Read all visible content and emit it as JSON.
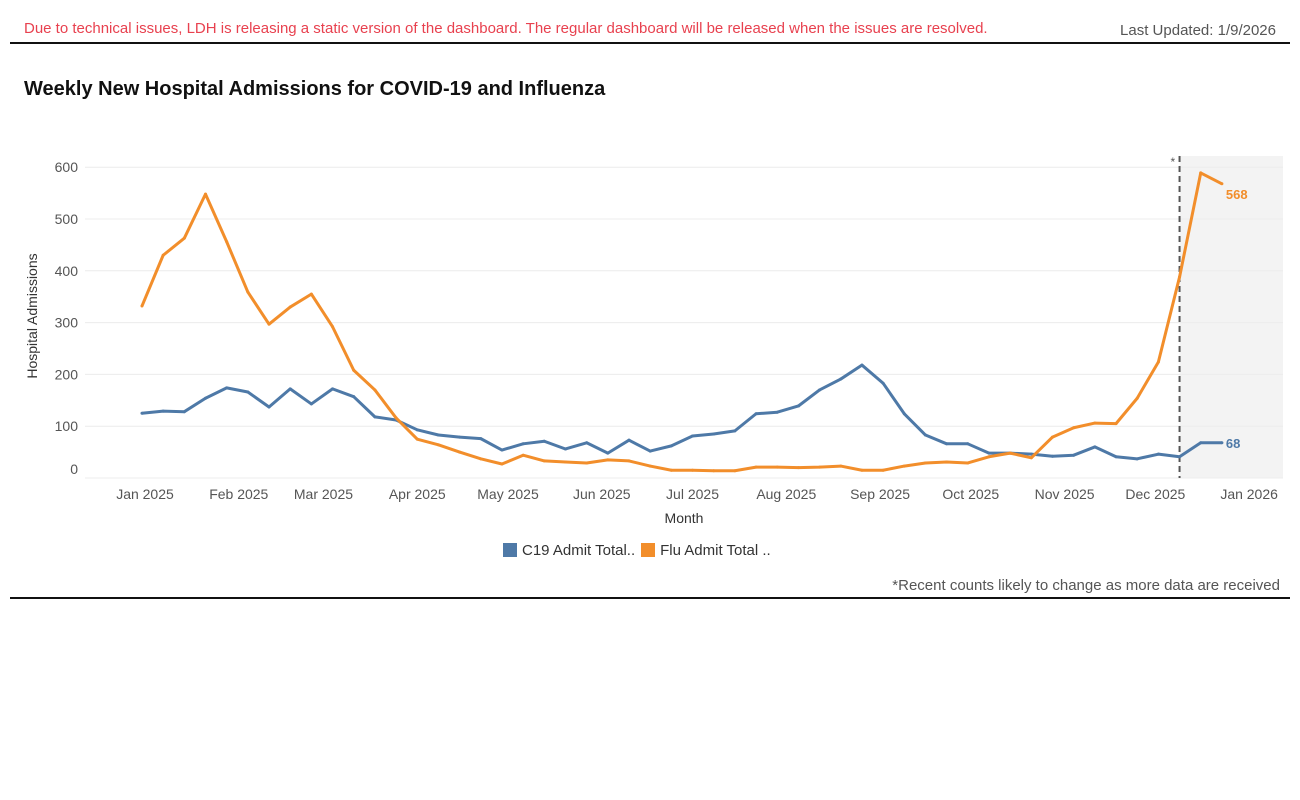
{
  "header": {
    "notice": "Due to technical issues, LDH is releasing a static version of the dashboard. The regular dashboard will be released when the issues are resolved.",
    "last_updated": "Last Updated: 1/9/2026"
  },
  "footnote": "*Recent counts likely to change as more data are received",
  "colors": {
    "c19": "#4e79a7",
    "flu": "#f28e2b",
    "notice": "#e8414f",
    "recent_shade": "#f3f3f3"
  },
  "chart_data": {
    "type": "line",
    "title": "Weekly New Hospital Admissions for COVID-19 and Influenza",
    "xlabel": "Month",
    "ylabel": "Hospital Admissions",
    "ylim": [
      0,
      600
    ],
    "yticks": [
      0,
      100,
      200,
      300,
      400,
      500,
      600
    ],
    "xticks": [
      "Jan 2025",
      "Feb 2025",
      "Mar 2025",
      "Apr 2025",
      "May 2025",
      "Jun 2025",
      "Jul 2025",
      "Aug 2025",
      "Sep 2025",
      "Oct 2025",
      "Nov 2025",
      "Dec 2025",
      "Jan 2026"
    ],
    "grid": true,
    "legend": "bottom",
    "recent_marker": {
      "date": "2025-12-09",
      "label": "*"
    },
    "x": [
      "2024-12-31",
      "2025-01-07",
      "2025-01-14",
      "2025-01-21",
      "2025-01-28",
      "2025-02-04",
      "2025-02-11",
      "2025-02-18",
      "2025-02-25",
      "2025-03-04",
      "2025-03-11",
      "2025-03-18",
      "2025-03-25",
      "2025-04-01",
      "2025-04-08",
      "2025-04-15",
      "2025-04-22",
      "2025-04-29",
      "2025-05-06",
      "2025-05-13",
      "2025-05-20",
      "2025-05-27",
      "2025-06-03",
      "2025-06-10",
      "2025-06-17",
      "2025-06-24",
      "2025-07-01",
      "2025-07-08",
      "2025-07-15",
      "2025-07-22",
      "2025-07-29",
      "2025-08-05",
      "2025-08-12",
      "2025-08-19",
      "2025-08-26",
      "2025-09-02",
      "2025-09-09",
      "2025-09-16",
      "2025-09-23",
      "2025-09-30",
      "2025-10-07",
      "2025-10-14",
      "2025-10-21",
      "2025-10-28",
      "2025-11-04",
      "2025-11-11",
      "2025-11-18",
      "2025-11-25",
      "2025-12-02",
      "2025-12-09",
      "2025-12-16",
      "2025-12-23"
    ],
    "series": [
      {
        "name": "C19 Admit Total..",
        "end_label": "68",
        "values": [
          125,
          129,
          128,
          154,
          174,
          166,
          137,
          172,
          143,
          172,
          157,
          118,
          112,
          93,
          83,
          79,
          76,
          54,
          66,
          71,
          56,
          68,
          48,
          73,
          52,
          62,
          81,
          85,
          91,
          124,
          127,
          139,
          170,
          191,
          218,
          183,
          124,
          83,
          66,
          66,
          48,
          48,
          46,
          42,
          44,
          60,
          41,
          37,
          46,
          41,
          68,
          68
        ]
      },
      {
        "name": "Flu Admit Total ..",
        "end_label": "568",
        "values": [
          332,
          430,
          463,
          548,
          456,
          359,
          297,
          330,
          355,
          292,
          208,
          170,
          116,
          75,
          64,
          50,
          37,
          27,
          44,
          33,
          31,
          29,
          35,
          33,
          23,
          15,
          15,
          14,
          14,
          21,
          21,
          20,
          21,
          23,
          15,
          15,
          23,
          29,
          31,
          29,
          41,
          48,
          39,
          79,
          97,
          106,
          105,
          154,
          224,
          388,
          589,
          568
        ]
      }
    ]
  }
}
